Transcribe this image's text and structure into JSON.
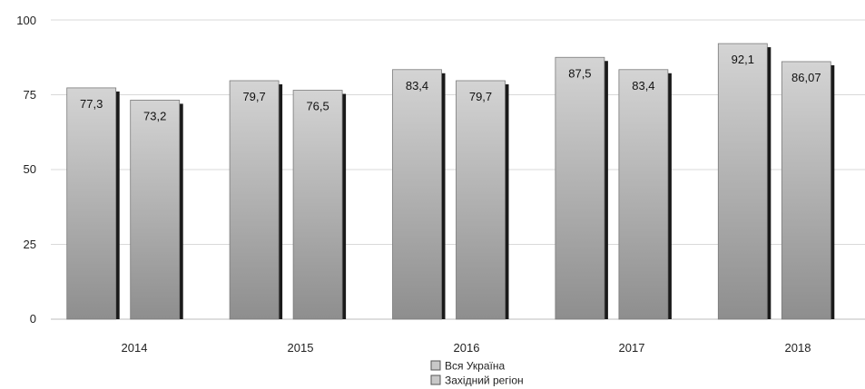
{
  "chart_data": {
    "type": "bar",
    "categories": [
      "2014",
      "2015",
      "2016",
      "2017",
      "2018"
    ],
    "series": [
      {
        "name": "Вся Україна",
        "values": [
          77.3,
          79.7,
          83.4,
          87.5,
          92.1
        ],
        "labels": [
          "77,3",
          "79,7",
          "83,4",
          "87,5",
          "92,1"
        ]
      },
      {
        "name": "Західний регіон",
        "values": [
          73.2,
          76.5,
          79.7,
          83.4,
          86.07
        ],
        "labels": [
          "73,2",
          "76,5",
          "79,7",
          "83,4",
          "86,07"
        ]
      }
    ],
    "yticks": [
      "0",
      "25",
      "50",
      "75",
      "100"
    ],
    "ylim": [
      0,
      100
    ],
    "grid": true,
    "legend_position": "bottom-center",
    "colors": {
      "bar_light": "#d4d4d4",
      "bar_dark": "#8e8e8e",
      "bar_shadow": "#1a1a1a",
      "grid": "#d9d9d9"
    }
  }
}
